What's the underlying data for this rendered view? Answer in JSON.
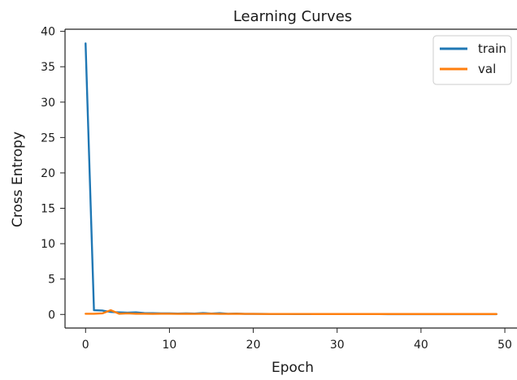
{
  "chart_data": {
    "type": "line",
    "title": "Learning Curves",
    "xlabel": "Epoch",
    "ylabel": "Cross Entropy",
    "xlim": [
      -2.45,
      51.45
    ],
    "ylim": [
      -1.92,
      40.3
    ],
    "xticks": [
      0,
      10,
      20,
      30,
      40,
      50
    ],
    "yticks": [
      0,
      5,
      10,
      15,
      20,
      25,
      30,
      35,
      40
    ],
    "grid": false,
    "legend_position": "top-right",
    "series": [
      {
        "name": "train",
        "color": "#1f77b4",
        "x": [
          0,
          1,
          2,
          3,
          4,
          5,
          6,
          7,
          8,
          9,
          10,
          11,
          12,
          13,
          14,
          15,
          16,
          17,
          18,
          19,
          20,
          21,
          22,
          23,
          24,
          25,
          26,
          27,
          28,
          29,
          30,
          31,
          32,
          33,
          34,
          35,
          36,
          37,
          38,
          39,
          40,
          41,
          42,
          43,
          44,
          45,
          46,
          47,
          48,
          49
        ],
        "values": [
          38.3,
          0.6,
          0.55,
          0.35,
          0.3,
          0.25,
          0.3,
          0.2,
          0.18,
          0.15,
          0.15,
          0.12,
          0.15,
          0.12,
          0.2,
          0.12,
          0.18,
          0.1,
          0.12,
          0.08,
          0.08,
          0.08,
          0.07,
          0.07,
          0.07,
          0.06,
          0.06,
          0.06,
          0.06,
          0.05,
          0.05,
          0.05,
          0.05,
          0.05,
          0.05,
          0.05,
          0.04,
          0.04,
          0.04,
          0.04,
          0.04,
          0.04,
          0.04,
          0.04,
          0.04,
          0.04,
          0.04,
          0.04,
          0.04,
          0.04
        ]
      },
      {
        "name": "val",
        "color": "#ff7f0e",
        "x": [
          0,
          1,
          2,
          3,
          4,
          5,
          6,
          7,
          8,
          9,
          10,
          11,
          12,
          13,
          14,
          15,
          16,
          17,
          18,
          19,
          20,
          21,
          22,
          23,
          24,
          25,
          26,
          27,
          28,
          29,
          30,
          31,
          32,
          33,
          34,
          35,
          36,
          37,
          38,
          39,
          40,
          41,
          42,
          43,
          44,
          45,
          46,
          47,
          48,
          49
        ],
        "values": [
          0.1,
          0.1,
          0.15,
          0.6,
          0.1,
          0.15,
          0.1,
          0.1,
          0.08,
          0.1,
          0.1,
          0.08,
          0.1,
          0.08,
          0.1,
          0.1,
          0.08,
          0.08,
          0.1,
          0.08,
          0.08,
          0.07,
          0.07,
          0.07,
          0.07,
          0.07,
          0.07,
          0.06,
          0.06,
          0.06,
          0.06,
          0.06,
          0.06,
          0.06,
          0.06,
          0.06,
          0.06,
          0.06,
          0.06,
          0.06,
          0.06,
          0.06,
          0.06,
          0.06,
          0.06,
          0.06,
          0.06,
          0.06,
          0.06,
          0.06
        ]
      }
    ]
  }
}
